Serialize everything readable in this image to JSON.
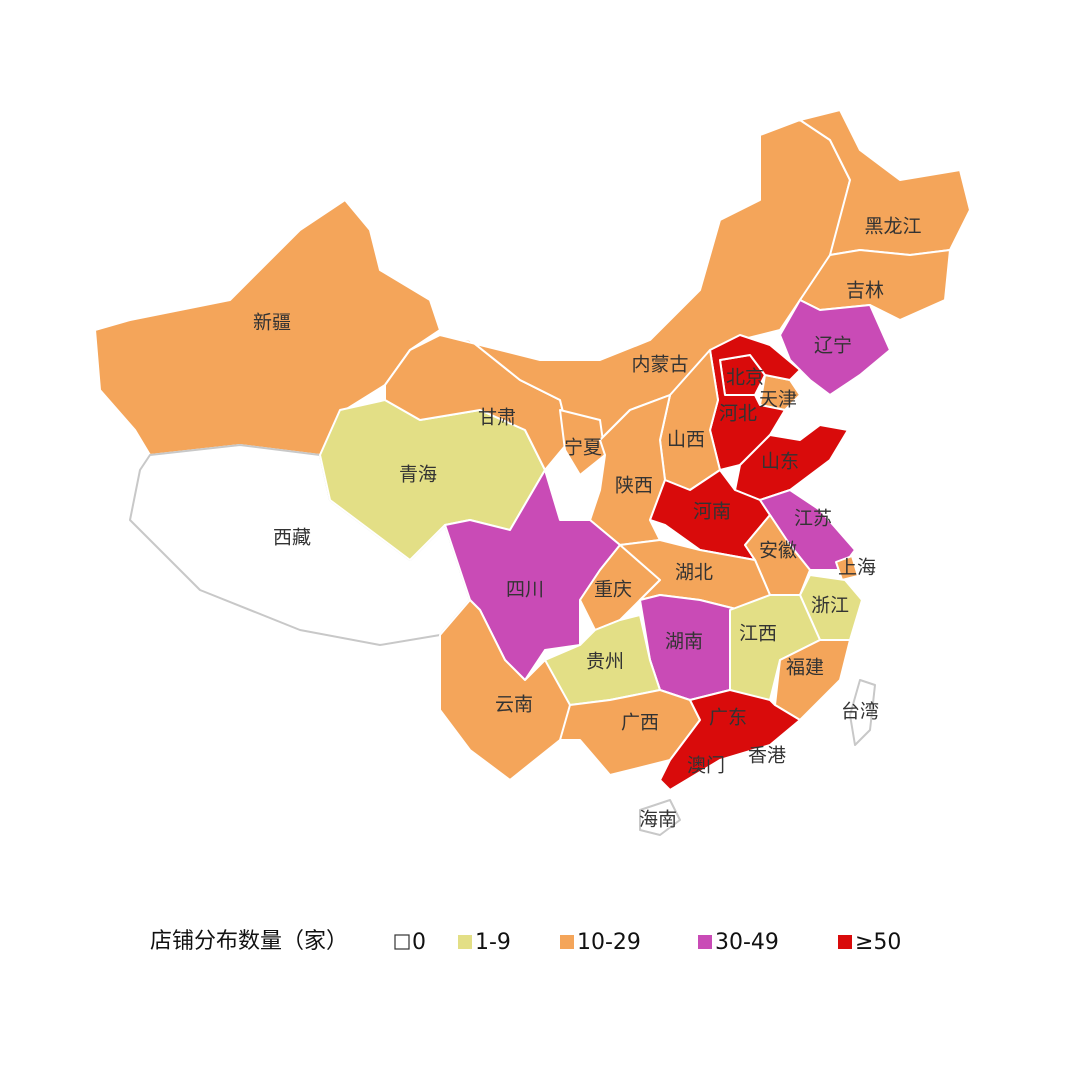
{
  "legend": {
    "title": "店铺分布数量（家）",
    "items": [
      {
        "label": "0",
        "color": "#ffffff"
      },
      {
        "label": "1-9",
        "color": "#e3df86"
      },
      {
        "label": "10-29",
        "color": "#f4a55a"
      },
      {
        "label": "30-49",
        "color": "#c94bb6"
      },
      {
        "label": "≥50",
        "color": "#d90b0b"
      }
    ]
  },
  "regions": [
    {
      "name": "新疆",
      "range": "10-29"
    },
    {
      "name": "西藏",
      "range": "0"
    },
    {
      "name": "青海",
      "range": "1-9"
    },
    {
      "name": "甘肃",
      "range": "10-29"
    },
    {
      "name": "内蒙古",
      "range": "10-29"
    },
    {
      "name": "黑龙江",
      "range": "10-29"
    },
    {
      "name": "吉林",
      "range": "10-29"
    },
    {
      "name": "辽宁",
      "range": "30-49"
    },
    {
      "name": "北京",
      "range": "≥50"
    },
    {
      "name": "天津",
      "range": "10-29"
    },
    {
      "name": "河北",
      "range": "≥50"
    },
    {
      "name": "山西",
      "range": "10-29"
    },
    {
      "name": "山东",
      "range": "≥50"
    },
    {
      "name": "宁夏",
      "range": "10-29"
    },
    {
      "name": "陕西",
      "range": "10-29"
    },
    {
      "name": "河南",
      "range": "≥50"
    },
    {
      "name": "江苏",
      "range": "30-49"
    },
    {
      "name": "安徽",
      "range": "10-29"
    },
    {
      "name": "上海",
      "range": "10-29"
    },
    {
      "name": "浙江",
      "range": "1-9"
    },
    {
      "name": "四川",
      "range": "30-49"
    },
    {
      "name": "重庆",
      "range": "10-29"
    },
    {
      "name": "湖北",
      "range": "10-29"
    },
    {
      "name": "湖南",
      "range": "30-49"
    },
    {
      "name": "江西",
      "range": "1-9"
    },
    {
      "name": "福建",
      "range": "10-29"
    },
    {
      "name": "贵州",
      "range": "1-9"
    },
    {
      "name": "云南",
      "range": "10-29"
    },
    {
      "name": "广西",
      "range": "10-29"
    },
    {
      "name": "广东",
      "range": "≥50"
    },
    {
      "name": "台湾",
      "range": "0"
    },
    {
      "name": "海南",
      "range": "0"
    },
    {
      "name": "香港",
      "range": "0"
    },
    {
      "name": "澳门",
      "range": "0"
    }
  ]
}
